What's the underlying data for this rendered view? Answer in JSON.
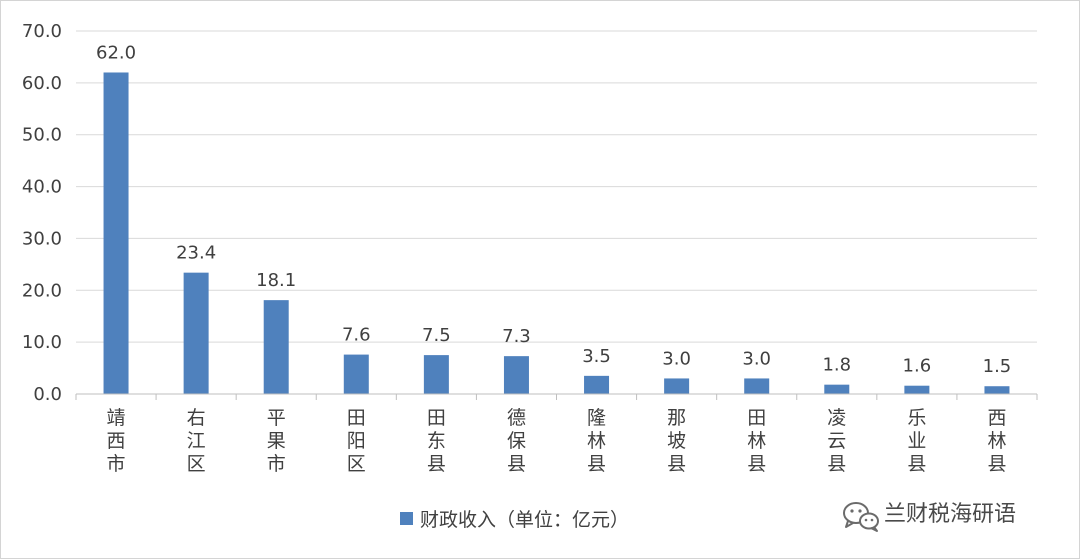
{
  "chart_data": {
    "type": "bar",
    "title": "",
    "xlabel": "",
    "ylabel": "",
    "categories": [
      "靖西市",
      "右江区",
      "平果市",
      "田阳区",
      "田东县",
      "德保县",
      "隆林县",
      "那坡县",
      "田林县",
      "凌云县",
      "乐业县",
      "西林县"
    ],
    "series": [
      {
        "name": "财政收入（单位：亿元）",
        "values": [
          62.0,
          23.4,
          18.1,
          7.6,
          7.5,
          7.3,
          3.5,
          3.0,
          3.0,
          1.8,
          1.6,
          1.5
        ],
        "labels": [
          "62.0",
          "23.4",
          "18.1",
          "7.6",
          "7.5",
          "7.3",
          "3.5",
          "3.0",
          "3.0",
          "1.8",
          "1.6",
          "1.5"
        ]
      }
    ],
    "ylim": [
      0,
      70
    ],
    "yticks": [
      "0.0",
      "10.0",
      "20.0",
      "30.0",
      "40.0",
      "50.0",
      "60.0",
      "70.0"
    ],
    "grid": true,
    "legend_position": "bottom",
    "colors": {
      "bar": "#4f81bd",
      "grid": "#d9d9d9",
      "axis": "#bfbfbf",
      "text": "#404040"
    }
  },
  "watermark": {
    "text": "兰财税海研语",
    "icon": "wechat-icon"
  }
}
